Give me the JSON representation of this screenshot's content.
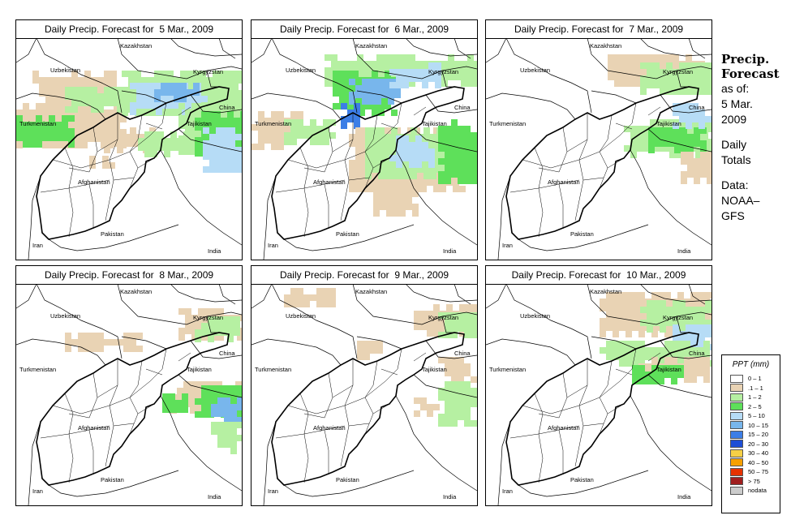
{
  "panels": [
    {
      "title": "Daily Precip. Forecast for  5 Mar., 2009"
    },
    {
      "title": "Daily Precip. Forecast for  6 Mar., 2009"
    },
    {
      "title": "Daily Precip. Forecast for  7 Mar., 2009"
    },
    {
      "title": "Daily Precip. Forecast for  8 Mar., 2009"
    },
    {
      "title": "Daily Precip. Forecast for  9 Mar., 2009"
    },
    {
      "title": "Daily Precip. Forecast for  10 Mar., 2009"
    }
  ],
  "countries": {
    "kazakhstan": "Kazakhstan",
    "uzbekistan": "Uzbekistan",
    "kyrgyzstan": "Kyrgyzstan",
    "turkmenistan": "Turkmenistan",
    "tajikistan": "Tajikistan",
    "china": "China",
    "afghanistan": "Afghanistan",
    "pakistan": "Pakistan",
    "iran": "Iran",
    "india": "India"
  },
  "sidebar": {
    "title_line1": "Precip.",
    "title_line2": "Forecast",
    "asof_label": "as of:",
    "date_line1": "5 Mar.",
    "date_line2": "2009",
    "totals_line1": "Daily",
    "totals_line2": "Totals",
    "source_label": "Data:",
    "source_line1": "NOAA–",
    "source_line2": "GFS"
  },
  "legend": {
    "title": "PPT (mm)",
    "items": [
      {
        "label": "0 – 1",
        "color": "#ffffff"
      },
      {
        "label": ".1 – 1",
        "color": "#e9d3b4"
      },
      {
        "label": "1 – 2",
        "color": "#b6f0a2"
      },
      {
        "label": "2 – 5",
        "color": "#5ee05a"
      },
      {
        "label": "5 – 10",
        "color": "#b6dcf6"
      },
      {
        "label": "10 – 15",
        "color": "#78b6ec"
      },
      {
        "label": "15 – 20",
        "color": "#3c7ee6"
      },
      {
        "label": "20 – 30",
        "color": "#1e4ed6"
      },
      {
        "label": "30 – 40",
        "color": "#f6d046"
      },
      {
        "label": "40 – 50",
        "color": "#f6a000"
      },
      {
        "label": "50 – 75",
        "color": "#e63200"
      },
      {
        "label": "> 75",
        "color": "#a01e1e"
      },
      {
        "label": "nodata",
        "color": "#cccccc"
      }
    ]
  },
  "precip_fields": [
    {
      "blobs": [
        {
          "x": 0,
          "y": 80,
          "w": 130,
          "h": 55,
          "c": 1
        },
        {
          "x": 20,
          "y": 40,
          "w": 110,
          "h": 40,
          "c": 1
        },
        {
          "x": 0,
          "y": 95,
          "w": 70,
          "h": 35,
          "c": 3
        },
        {
          "x": 60,
          "y": 60,
          "w": 80,
          "h": 25,
          "c": 2
        },
        {
          "x": 130,
          "y": 40,
          "w": 150,
          "h": 50,
          "c": 2
        },
        {
          "x": 140,
          "y": 55,
          "w": 90,
          "h": 35,
          "c": 4
        },
        {
          "x": 170,
          "y": 55,
          "w": 50,
          "h": 20,
          "c": 5
        },
        {
          "x": 200,
          "y": 80,
          "w": 78,
          "h": 60,
          "c": 2
        },
        {
          "x": 220,
          "y": 90,
          "w": 58,
          "h": 60,
          "c": 3
        },
        {
          "x": 230,
          "y": 110,
          "w": 48,
          "h": 50,
          "c": 4
        },
        {
          "x": 100,
          "y": 110,
          "w": 80,
          "h": 25,
          "c": 1
        },
        {
          "x": 150,
          "y": 115,
          "w": 60,
          "h": 25,
          "c": 2
        },
        {
          "x": 90,
          "y": 145,
          "w": 40,
          "h": 15,
          "c": 1
        }
      ]
    },
    {
      "blobs": [
        {
          "x": 0,
          "y": 90,
          "w": 60,
          "h": 45,
          "c": 1
        },
        {
          "x": 40,
          "y": 100,
          "w": 60,
          "h": 30,
          "c": 2
        },
        {
          "x": 90,
          "y": 20,
          "w": 190,
          "h": 40,
          "c": 2
        },
        {
          "x": 100,
          "y": 40,
          "w": 80,
          "h": 50,
          "c": 3
        },
        {
          "x": 120,
          "y": 50,
          "w": 60,
          "h": 30,
          "c": 5
        },
        {
          "x": 110,
          "y": 80,
          "w": 20,
          "h": 25,
          "c": 6
        },
        {
          "x": 170,
          "y": 30,
          "w": 60,
          "h": 30,
          "c": 4
        },
        {
          "x": 120,
          "y": 110,
          "w": 140,
          "h": 80,
          "c": 1
        },
        {
          "x": 140,
          "y": 110,
          "w": 100,
          "h": 60,
          "c": 2
        },
        {
          "x": 170,
          "y": 120,
          "w": 50,
          "h": 40,
          "c": 4
        },
        {
          "x": 230,
          "y": 100,
          "w": 48,
          "h": 80,
          "c": 3
        },
        {
          "x": 150,
          "y": 180,
          "w": 50,
          "h": 35,
          "c": 1
        }
      ]
    },
    {
      "blobs": [
        {
          "x": 150,
          "y": 20,
          "w": 128,
          "h": 40,
          "c": 1
        },
        {
          "x": 190,
          "y": 30,
          "w": 88,
          "h": 40,
          "c": 2
        },
        {
          "x": 170,
          "y": 100,
          "w": 108,
          "h": 45,
          "c": 2
        },
        {
          "x": 200,
          "y": 110,
          "w": 70,
          "h": 30,
          "c": 3
        },
        {
          "x": 230,
          "y": 80,
          "w": 48,
          "h": 30,
          "c": 4
        },
        {
          "x": 240,
          "y": 140,
          "w": 38,
          "h": 40,
          "c": 1
        }
      ]
    },
    {
      "blobs": [
        {
          "x": 200,
          "y": 30,
          "w": 78,
          "h": 40,
          "c": 1
        },
        {
          "x": 220,
          "y": 40,
          "w": 58,
          "h": 30,
          "c": 2
        },
        {
          "x": 60,
          "y": 60,
          "w": 90,
          "h": 20,
          "c": 1
        },
        {
          "x": 190,
          "y": 120,
          "w": 88,
          "h": 40,
          "c": 1
        },
        {
          "x": 220,
          "y": 125,
          "w": 58,
          "h": 40,
          "c": 3
        },
        {
          "x": 240,
          "y": 140,
          "w": 38,
          "h": 30,
          "c": 5
        },
        {
          "x": 180,
          "y": 135,
          "w": 25,
          "h": 20,
          "c": 3
        },
        {
          "x": 240,
          "y": 170,
          "w": 38,
          "h": 40,
          "c": 2
        }
      ]
    },
    {
      "blobs": [
        {
          "x": 40,
          "y": 5,
          "w": 60,
          "h": 20,
          "c": 1
        },
        {
          "x": 200,
          "y": 25,
          "w": 78,
          "h": 40,
          "c": 1
        },
        {
          "x": 230,
          "y": 35,
          "w": 48,
          "h": 30,
          "c": 2
        },
        {
          "x": 130,
          "y": 70,
          "w": 30,
          "h": 20,
          "c": 1
        },
        {
          "x": 230,
          "y": 90,
          "w": 48,
          "h": 30,
          "c": 1
        },
        {
          "x": 230,
          "y": 120,
          "w": 48,
          "h": 50,
          "c": 2
        },
        {
          "x": 200,
          "y": 140,
          "w": 30,
          "h": 20,
          "c": 1
        }
      ]
    },
    {
      "blobs": [
        {
          "x": 140,
          "y": 10,
          "w": 138,
          "h": 50,
          "c": 1
        },
        {
          "x": 190,
          "y": 20,
          "w": 88,
          "h": 40,
          "c": 2
        },
        {
          "x": 230,
          "y": 50,
          "w": 48,
          "h": 30,
          "c": 4
        },
        {
          "x": 140,
          "y": 70,
          "w": 138,
          "h": 30,
          "c": 2
        },
        {
          "x": 180,
          "y": 90,
          "w": 98,
          "h": 25,
          "c": 1
        },
        {
          "x": 180,
          "y": 100,
          "w": 60,
          "h": 20,
          "c": 3
        }
      ]
    }
  ]
}
